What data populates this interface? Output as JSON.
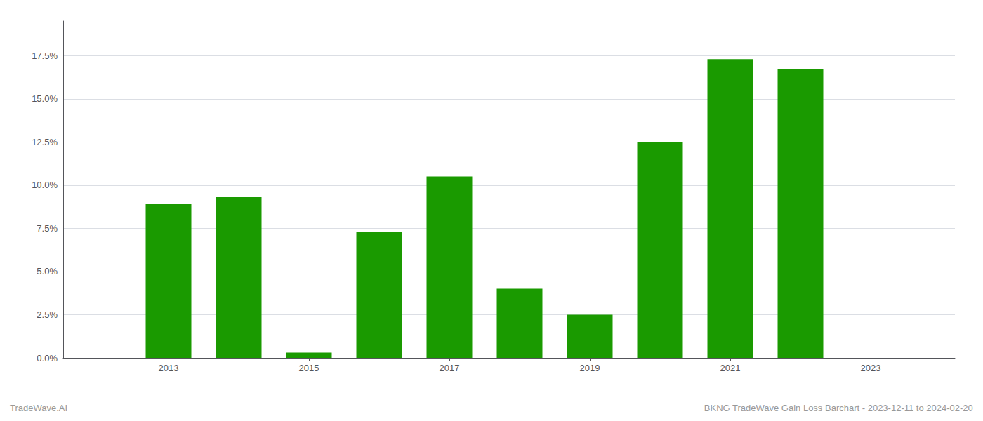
{
  "chart_data": {
    "type": "bar",
    "x": [
      2013,
      2014,
      2015,
      2016,
      2017,
      2018,
      2019,
      2020,
      2021,
      2022
    ],
    "values": [
      0.089,
      0.093,
      0.003,
      0.073,
      0.105,
      0.04,
      0.025,
      0.125,
      0.173,
      0.167
    ],
    "color": "#1a9a00",
    "xlim": [
      2011.5,
      2024.2
    ],
    "xticks": [
      2013,
      2015,
      2017,
      2019,
      2021,
      2023
    ],
    "ylim": [
      0,
      0.195
    ],
    "yticks": [
      {
        "value": 0.0,
        "label": "0.0%"
      },
      {
        "value": 0.025,
        "label": "2.5%"
      },
      {
        "value": 0.05,
        "label": "5.0%"
      },
      {
        "value": 0.075,
        "label": "7.5%"
      },
      {
        "value": 0.1,
        "label": "10.0%"
      },
      {
        "value": 0.125,
        "label": "12.5%"
      },
      {
        "value": 0.15,
        "label": "15.0%"
      },
      {
        "value": 0.175,
        "label": "17.5%"
      }
    ],
    "grid": true,
    "annotations": [
      "TradeWave.AI",
      "BKNG TradeWave Gain Loss Barchart - 2023-12-11 to 2024-02-20"
    ]
  }
}
